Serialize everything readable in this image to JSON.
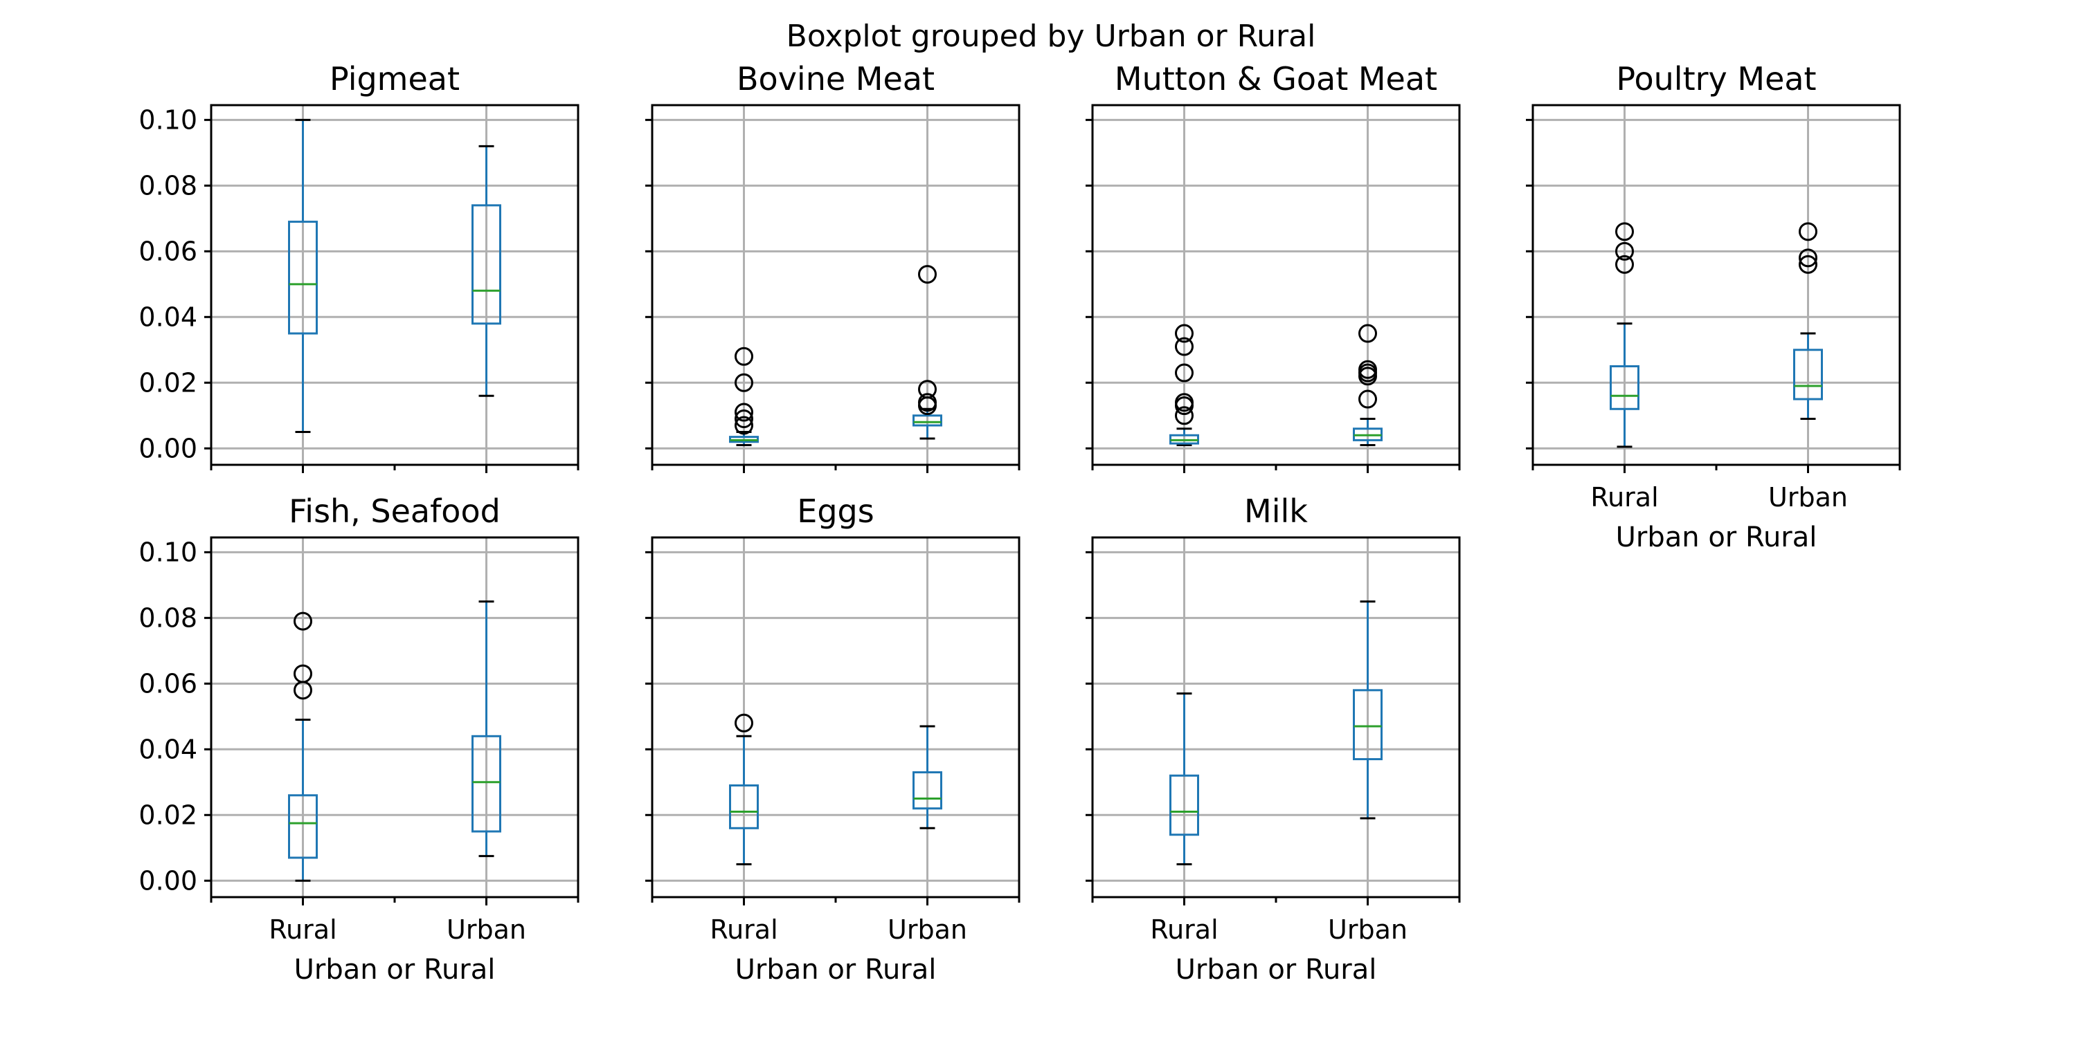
{
  "figure": {
    "suptitle": "Boxplot grouped by Urban or Rural"
  },
  "chart_data": {
    "type": "boxplot",
    "grouped_by": "Urban or Rural",
    "categories": [
      "Rural",
      "Urban"
    ],
    "ylim": [
      -0.005,
      0.1045
    ],
    "yticks": [
      "0.00",
      "0.02",
      "0.04",
      "0.06",
      "0.08",
      "0.10"
    ],
    "grid": true,
    "colors": {
      "box": "#1f77b4",
      "median": "#2ca02c",
      "grid": "#b0b0b0",
      "flier": "#000000"
    },
    "subplots": [
      {
        "title": "Pigmeat",
        "xlabel": "",
        "groups": [
          {
            "category": "Rural",
            "whisker_low": 0.005,
            "q1": 0.035,
            "median": 0.05,
            "q3": 0.069,
            "whisker_high": 0.1,
            "fliers": []
          },
          {
            "category": "Urban",
            "whisker_low": 0.016,
            "q1": 0.038,
            "median": 0.048,
            "q3": 0.074,
            "whisker_high": 0.092,
            "fliers": []
          }
        ]
      },
      {
        "title": "Bovine Meat",
        "xlabel": "",
        "groups": [
          {
            "category": "Rural",
            "whisker_low": 0.001,
            "q1": 0.002,
            "median": 0.0025,
            "q3": 0.0035,
            "whisker_high": 0.005,
            "fliers": [
              0.007,
              0.009,
              0.011,
              0.02,
              0.028
            ]
          },
          {
            "category": "Urban",
            "whisker_low": 0.003,
            "q1": 0.007,
            "median": 0.008,
            "q3": 0.01,
            "whisker_high": 0.012,
            "fliers": [
              0.013,
              0.014,
              0.018,
              0.053
            ]
          }
        ]
      },
      {
        "title": "Mutton & Goat Meat",
        "xlabel": "",
        "groups": [
          {
            "category": "Rural",
            "whisker_low": 0.001,
            "q1": 0.0015,
            "median": 0.0025,
            "q3": 0.004,
            "whisker_high": 0.006,
            "fliers": [
              0.01,
              0.013,
              0.014,
              0.023,
              0.031,
              0.035
            ]
          },
          {
            "category": "Urban",
            "whisker_low": 0.001,
            "q1": 0.0025,
            "median": 0.004,
            "q3": 0.006,
            "whisker_high": 0.009,
            "fliers": [
              0.015,
              0.022,
              0.023,
              0.024,
              0.035
            ]
          }
        ]
      },
      {
        "title": "Poultry Meat",
        "xlabel": "Urban or Rural",
        "groups": [
          {
            "category": "Rural",
            "whisker_low": 0.0005,
            "q1": 0.012,
            "median": 0.016,
            "q3": 0.025,
            "whisker_high": 0.038,
            "fliers": [
              0.056,
              0.06,
              0.066
            ]
          },
          {
            "category": "Urban",
            "whisker_low": 0.009,
            "q1": 0.015,
            "median": 0.019,
            "q3": 0.03,
            "whisker_high": 0.035,
            "fliers": [
              0.056,
              0.058,
              0.066
            ]
          }
        ]
      },
      {
        "title": "Fish, Seafood",
        "xlabel": "Urban or Rural",
        "groups": [
          {
            "category": "Rural",
            "whisker_low": 0.0,
            "q1": 0.007,
            "median": 0.0175,
            "q3": 0.026,
            "whisker_high": 0.049,
            "fliers": [
              0.058,
              0.063,
              0.079
            ]
          },
          {
            "category": "Urban",
            "whisker_low": 0.0075,
            "q1": 0.015,
            "median": 0.03,
            "q3": 0.044,
            "whisker_high": 0.085,
            "fliers": []
          }
        ]
      },
      {
        "title": "Eggs",
        "xlabel": "Urban or Rural",
        "groups": [
          {
            "category": "Rural",
            "whisker_low": 0.005,
            "q1": 0.016,
            "median": 0.021,
            "q3": 0.029,
            "whisker_high": 0.044,
            "fliers": [
              0.048
            ]
          },
          {
            "category": "Urban",
            "whisker_low": 0.016,
            "q1": 0.022,
            "median": 0.025,
            "q3": 0.033,
            "whisker_high": 0.047,
            "fliers": []
          }
        ]
      },
      {
        "title": "Milk",
        "xlabel": "Urban or Rural",
        "groups": [
          {
            "category": "Rural",
            "whisker_low": 0.005,
            "q1": 0.014,
            "median": 0.021,
            "q3": 0.032,
            "whisker_high": 0.057,
            "fliers": []
          },
          {
            "category": "Urban",
            "whisker_low": 0.019,
            "q1": 0.037,
            "median": 0.047,
            "q3": 0.058,
            "whisker_high": 0.085,
            "fliers": []
          }
        ]
      }
    ]
  }
}
